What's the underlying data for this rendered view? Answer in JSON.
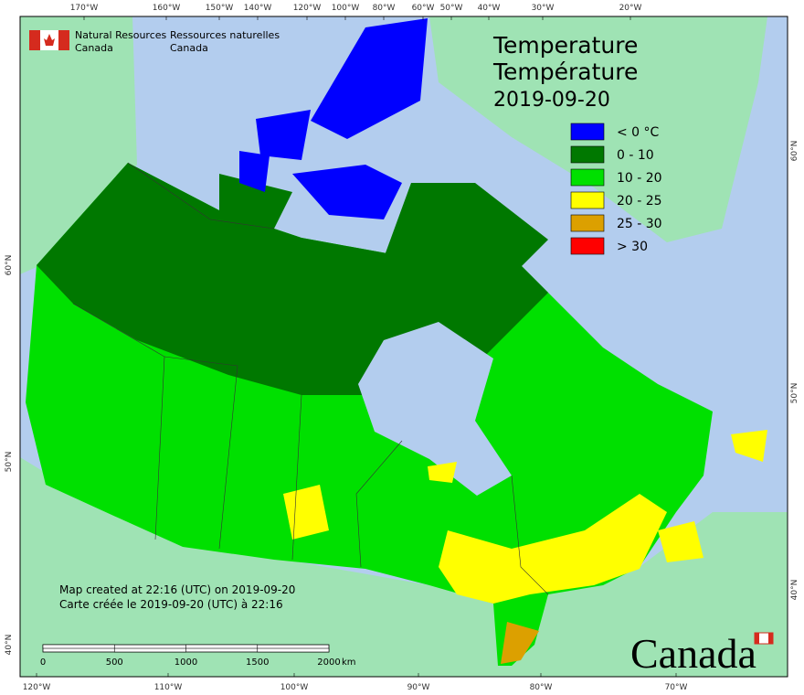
{
  "agency": {
    "en": [
      "Natural Resources",
      "Canada"
    ],
    "fr": [
      "Ressources naturelles",
      "Canada"
    ]
  },
  "title": {
    "en": "Temperature",
    "fr": "Température",
    "date": "2019-09-20"
  },
  "legend": [
    {
      "label": "< 0 °C",
      "color": "#0000ff"
    },
    {
      "label": "0 - 10",
      "color": "#007800"
    },
    {
      "label": "10 - 20",
      "color": "#00e000"
    },
    {
      "label": "20 - 25",
      "color": "#ffff00"
    },
    {
      "label": "25 - 30",
      "color": "#dca000"
    },
    {
      "label": "> 30",
      "color": "#ff0000"
    }
  ],
  "credits": [
    "Map created at 22:16 (UTC) on 2019-09-20",
    "Carte créée le 2019-09-20 (UTC) à 22:16"
  ],
  "scale_bar": {
    "ticks": [
      "0",
      "500",
      "1000",
      "1500",
      "2000"
    ],
    "unit": "km"
  },
  "graticule": {
    "top": [
      "170°W",
      "160°W",
      "150°W",
      "140°W",
      "120°W",
      "100°W",
      "80°W",
      "60°W",
      "50°W",
      "40°W",
      "30°W",
      "20°W"
    ],
    "bottom": [
      "120°W",
      "110°W",
      "100°W",
      "90°W",
      "80°W",
      "70°W"
    ],
    "left": [
      "60°N",
      "50°N",
      "40°N"
    ],
    "right": [
      "60°N",
      "50°N",
      "40°N"
    ]
  },
  "wordmark": "Canada"
}
